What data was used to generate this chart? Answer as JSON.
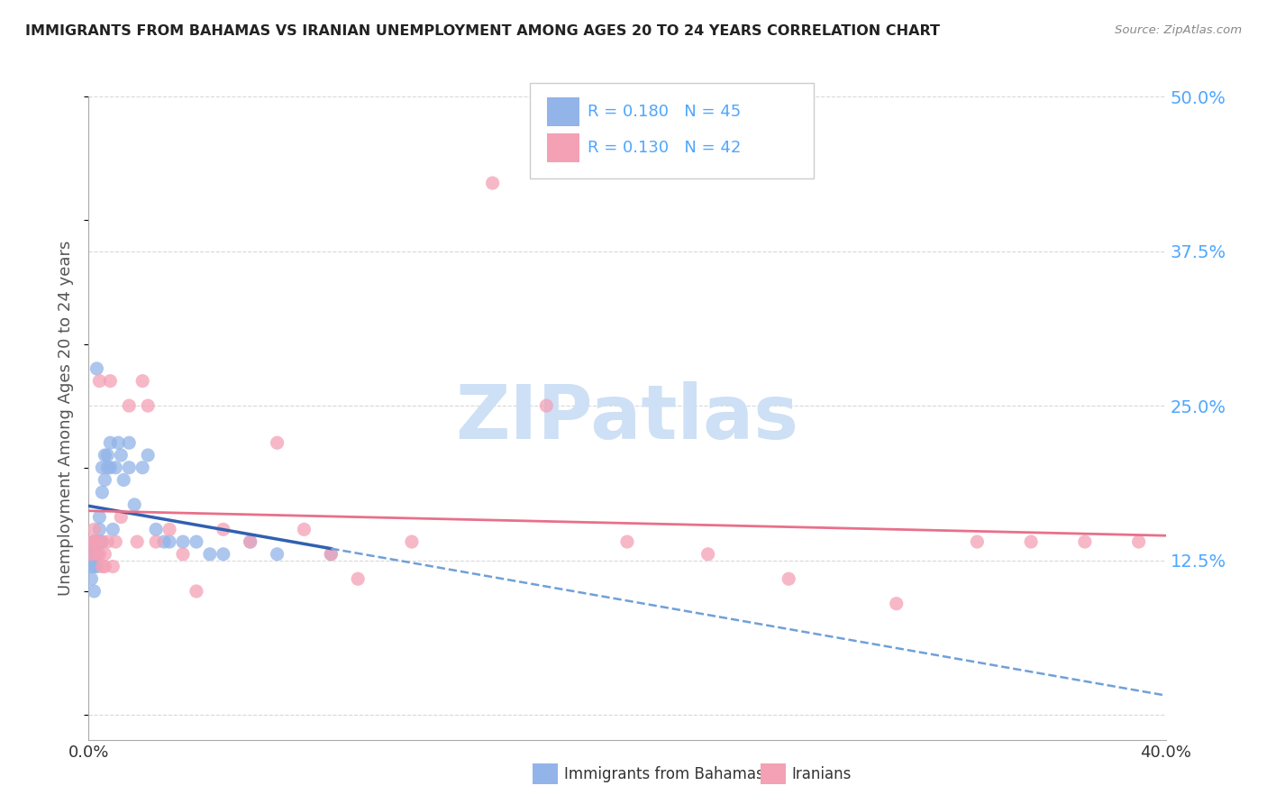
{
  "title": "IMMIGRANTS FROM BAHAMAS VS IRANIAN UNEMPLOYMENT AMONG AGES 20 TO 24 YEARS CORRELATION CHART",
  "source": "Source: ZipAtlas.com",
  "ylabel": "Unemployment Among Ages 20 to 24 years",
  "xlim": [
    0.0,
    0.4
  ],
  "ylim": [
    -0.02,
    0.5
  ],
  "yticks_right": [
    0.0,
    0.125,
    0.25,
    0.375,
    0.5
  ],
  "ytick_labels_right": [
    "",
    "12.5%",
    "25.0%",
    "37.5%",
    "50.0%"
  ],
  "series1_label": "Immigrants from Bahamas",
  "series1_R": "0.180",
  "series1_N": "45",
  "series1_color": "#92b4e8",
  "series2_label": "Iranians",
  "series2_R": "0.130",
  "series2_N": "42",
  "series2_color": "#f4a0b5",
  "watermark": "ZIPatlas",
  "watermark_color": "#cde0f5",
  "grid_color": "#d8d8d8",
  "title_color": "#222222",
  "right_label_color": "#4da6ff",
  "series1_x": [
    0.001,
    0.001,
    0.001,
    0.002,
    0.002,
    0.002,
    0.002,
    0.002,
    0.003,
    0.003,
    0.003,
    0.003,
    0.004,
    0.004,
    0.004,
    0.005,
    0.005,
    0.005,
    0.006,
    0.006,
    0.007,
    0.007,
    0.008,
    0.008,
    0.009,
    0.01,
    0.011,
    0.012,
    0.013,
    0.015,
    0.015,
    0.017,
    0.02,
    0.022,
    0.025,
    0.028,
    0.03,
    0.035,
    0.04,
    0.045,
    0.05,
    0.06,
    0.07,
    0.09,
    0.003
  ],
  "series1_y": [
    0.13,
    0.12,
    0.11,
    0.14,
    0.13,
    0.14,
    0.12,
    0.1,
    0.14,
    0.13,
    0.13,
    0.12,
    0.14,
    0.15,
    0.16,
    0.18,
    0.14,
    0.2,
    0.21,
    0.19,
    0.21,
    0.2,
    0.2,
    0.22,
    0.15,
    0.2,
    0.22,
    0.21,
    0.19,
    0.22,
    0.2,
    0.17,
    0.2,
    0.21,
    0.15,
    0.14,
    0.14,
    0.14,
    0.14,
    0.13,
    0.13,
    0.14,
    0.13,
    0.13,
    0.28
  ],
  "series2_x": [
    0.001,
    0.001,
    0.002,
    0.002,
    0.003,
    0.003,
    0.004,
    0.004,
    0.005,
    0.005,
    0.006,
    0.006,
    0.007,
    0.008,
    0.009,
    0.01,
    0.012,
    0.015,
    0.018,
    0.02,
    0.022,
    0.025,
    0.03,
    0.035,
    0.04,
    0.05,
    0.06,
    0.07,
    0.08,
    0.09,
    0.1,
    0.12,
    0.15,
    0.17,
    0.2,
    0.23,
    0.26,
    0.3,
    0.33,
    0.35,
    0.37,
    0.39
  ],
  "series2_y": [
    0.14,
    0.13,
    0.15,
    0.14,
    0.13,
    0.14,
    0.27,
    0.13,
    0.14,
    0.12,
    0.13,
    0.12,
    0.14,
    0.27,
    0.12,
    0.14,
    0.16,
    0.25,
    0.14,
    0.27,
    0.25,
    0.14,
    0.15,
    0.13,
    0.1,
    0.15,
    0.14,
    0.22,
    0.15,
    0.13,
    0.11,
    0.14,
    0.43,
    0.25,
    0.14,
    0.13,
    0.11,
    0.09,
    0.14,
    0.14,
    0.14,
    0.14
  ]
}
